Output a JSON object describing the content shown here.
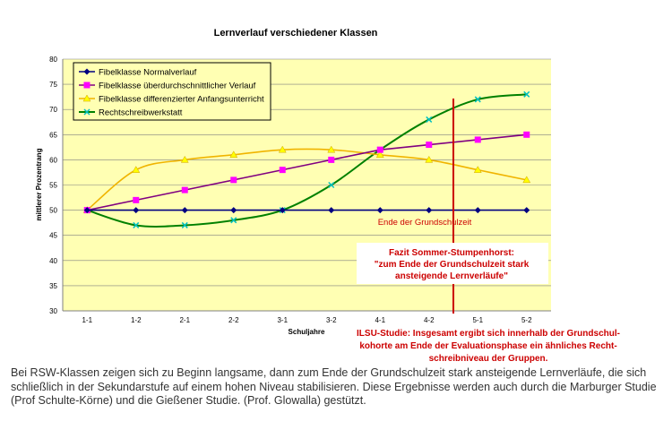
{
  "chart_data": {
    "type": "line",
    "title": "Lernverlauf verschiedener Klassen",
    "xlabel": "Schuljahre",
    "ylabel": "mittlerer Prozentrang",
    "categories": [
      "1-1",
      "1-2",
      "2-1",
      "2-2",
      "3-1",
      "3-2",
      "4-1",
      "4-2",
      "5-1",
      "5-2"
    ],
    "ylim": [
      30,
      80
    ],
    "yticks": [
      30,
      35,
      40,
      45,
      50,
      55,
      60,
      65,
      70,
      75,
      80
    ],
    "grid": true,
    "legend": "top-left",
    "series": [
      {
        "name": "Fibelklasse Normalverlauf",
        "color": "#000080",
        "marker": "diamond",
        "values": [
          50,
          50,
          50,
          50,
          50,
          50,
          50,
          50,
          50,
          50
        ]
      },
      {
        "name": "Fibelklasse überdurchschnittlicher Verlauf",
        "color": "#800080",
        "marker_color": "#ff00ff",
        "marker": "square",
        "values": [
          50,
          52,
          54,
          56,
          58,
          60,
          62,
          63,
          64,
          65
        ]
      },
      {
        "name": "Fibelklasse differenzierter Anfangsunterricht",
        "color": "#f0b400",
        "marker_color": "#ffff00",
        "marker": "triangle",
        "values": [
          50,
          58,
          60,
          61,
          62,
          62,
          61,
          60,
          58,
          56
        ]
      },
      {
        "name": "Rechtschreibwerkstatt",
        "color": "#008000",
        "marker_color": "#00c0c0",
        "marker": "x",
        "values": [
          50,
          47,
          47,
          48,
          50,
          55,
          62,
          68,
          72,
          73
        ]
      }
    ],
    "marker_line": {
      "x_between": [
        "4-2",
        "5-1"
      ],
      "color": "#cc0000",
      "label": "Ende der Grundschulzeit"
    },
    "annotations": {
      "fazit": [
        "Fazit Sommer-Stumpenhorst:",
        "\"zum Ende der Grundschulzeit stark",
        "ansteigende Lernverläufe\""
      ],
      "ilsu": [
        "ILSU-Studie: Insgesamt ergibt sich innerhalb der Grundschul-",
        "kohorte am Ende der Evaluationsphase ein ähnliches Recht-",
        "schreibniveau der Gruppen."
      ]
    }
  },
  "caption": "Bei RSW-Klassen zeigen sich zu Beginn langsame, dann zum Ende der Grundschulzeit stark ansteigende Lernverläufe, die sich schließlich in der Sekundarstufe auf einem hohen Niveau stabilisieren. Diese Ergebnisse werden auch durch die Marburger Studie (Prof Schulte-Körne) und die Gießener Studie. (Prof. Glowalla) gestützt."
}
